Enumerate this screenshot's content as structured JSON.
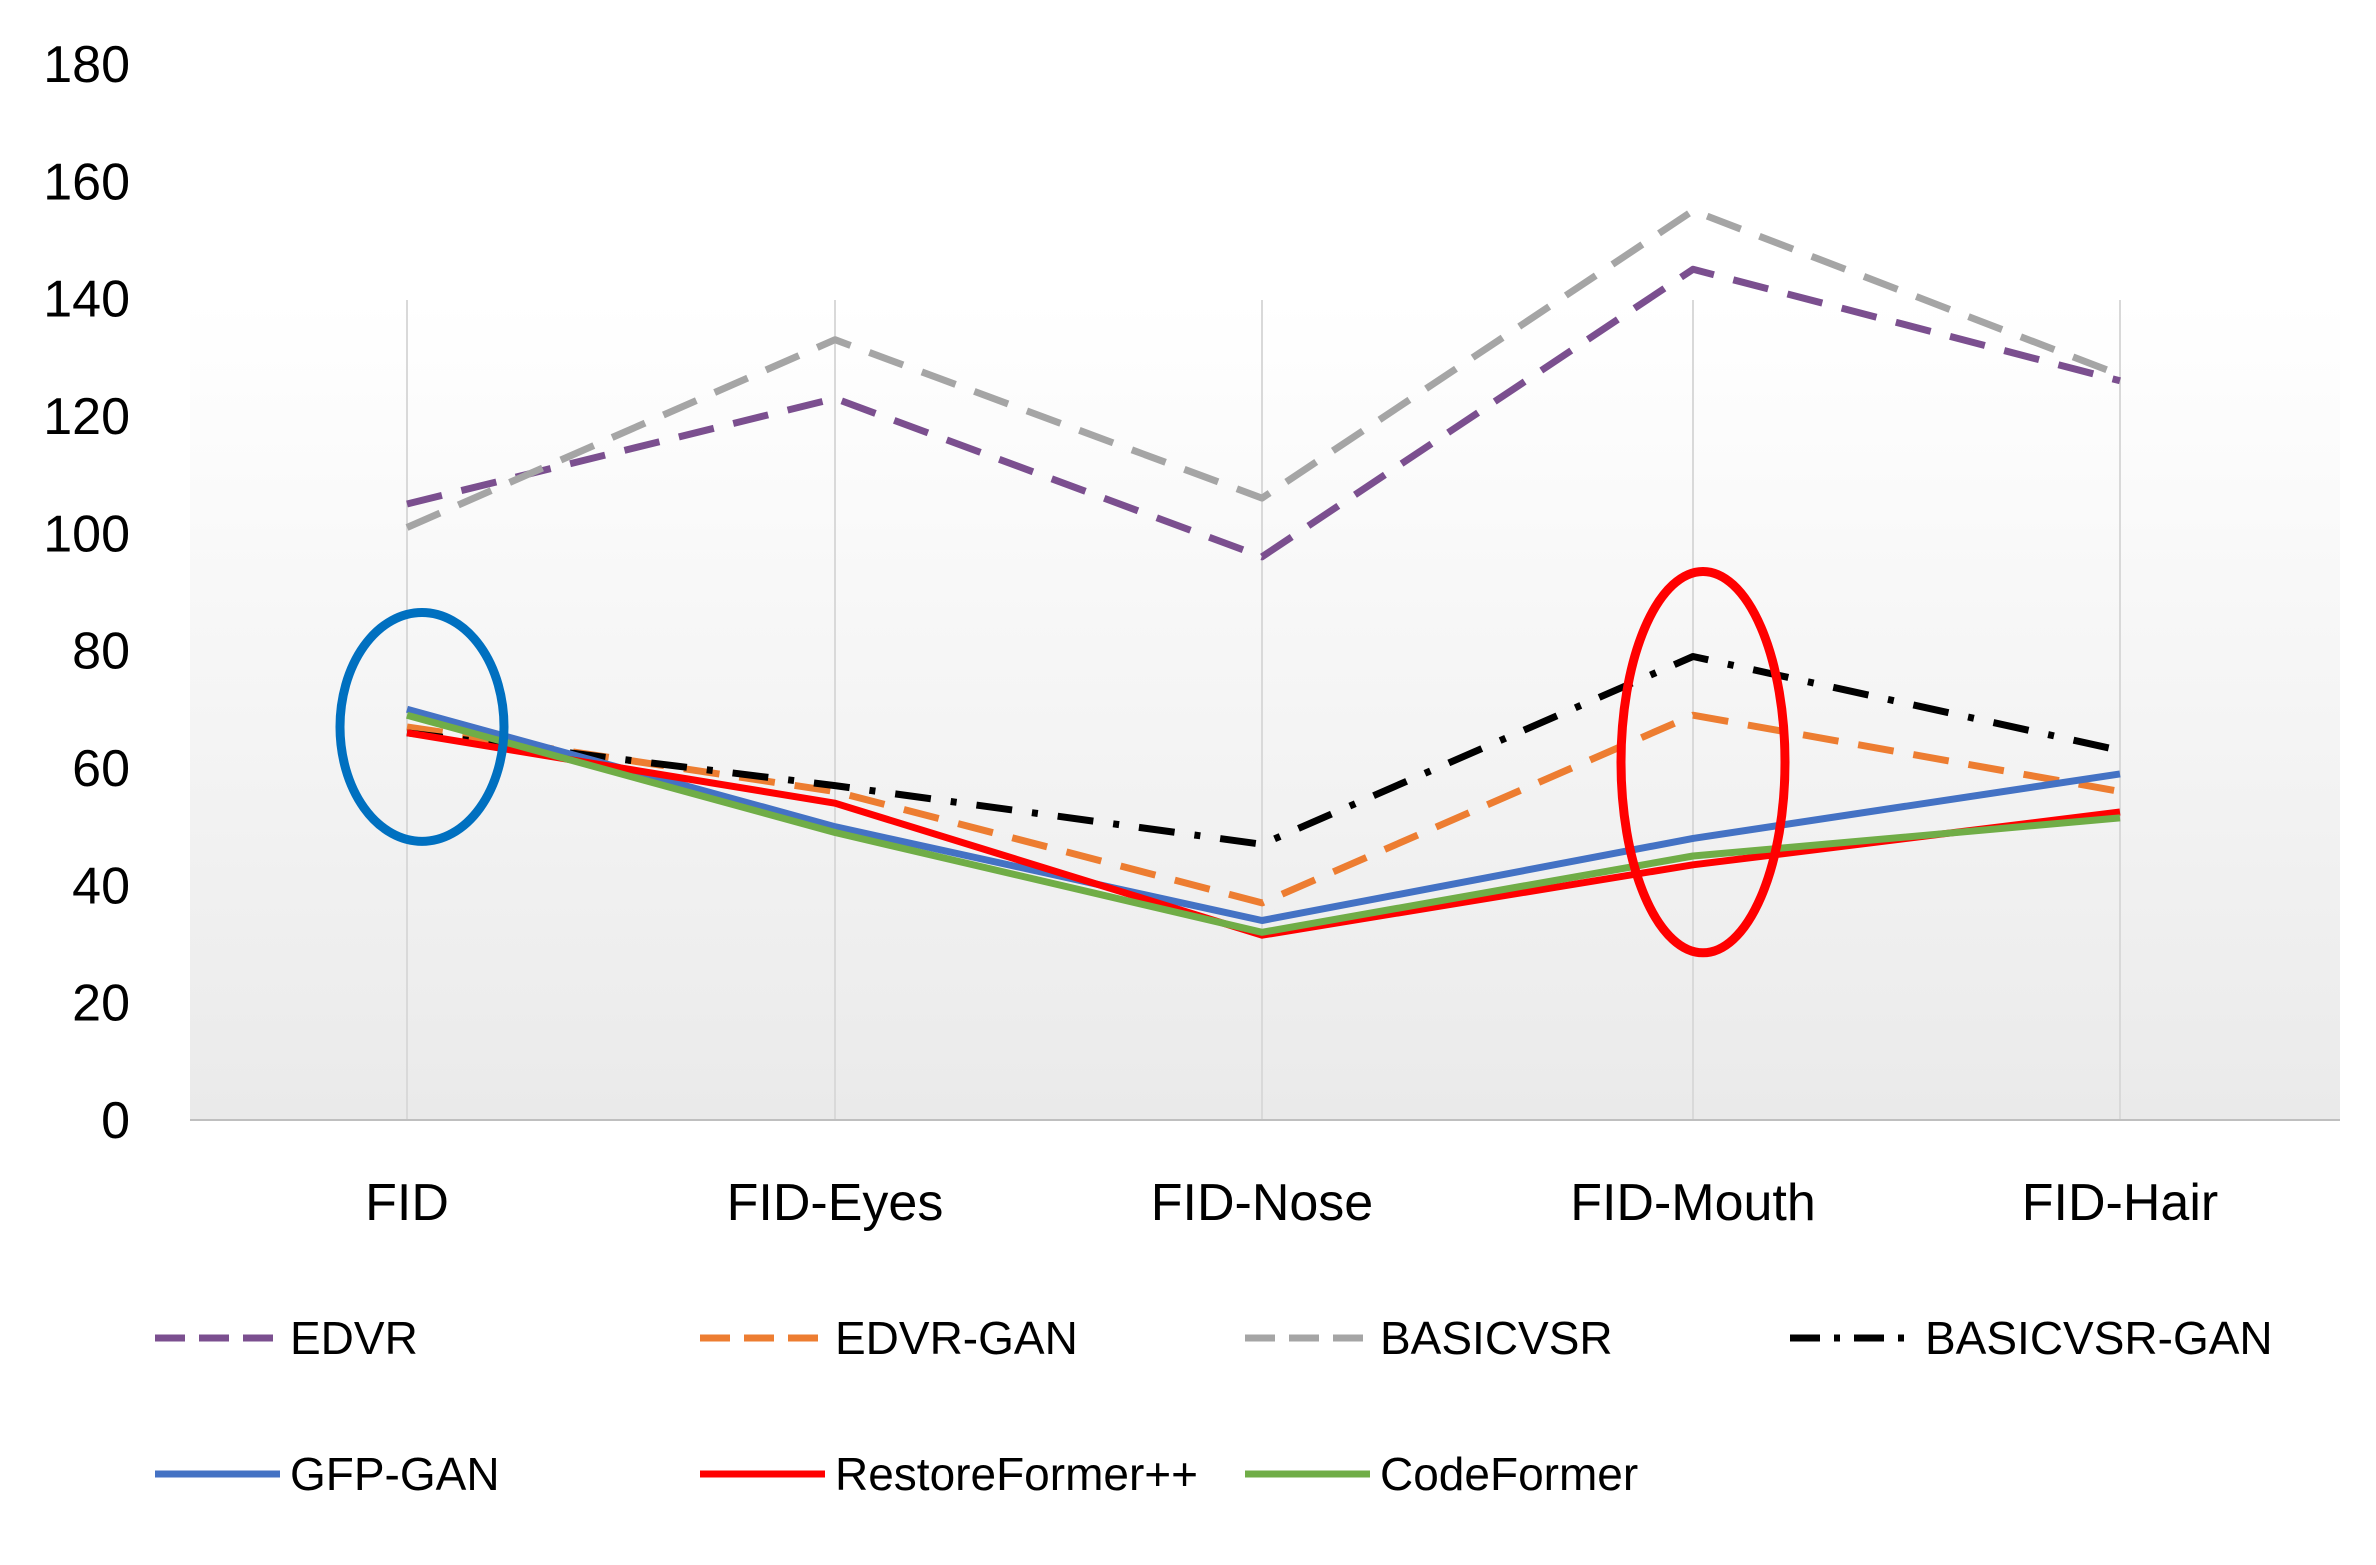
{
  "chart_data": {
    "type": "line",
    "title": "",
    "xlabel": "",
    "ylabel": "",
    "categories": [
      "FID",
      "FID-Eyes",
      "FID-Nose",
      "FID-Mouth",
      "FID-Hair"
    ],
    "yticks": [
      "0",
      "20",
      "40",
      "60",
      "80",
      "100",
      "120",
      "140",
      "160",
      "180"
    ],
    "ylim": [
      0,
      180
    ],
    "grid": "vertical",
    "legend_position": "bottom",
    "series": [
      {
        "name": "EDVR",
        "values": [
          105,
          123,
          96,
          145,
          126
        ],
        "color": "#7B4F8F",
        "dash": "dash"
      },
      {
        "name": "EDVR-GAN",
        "values": [
          67,
          56,
          37,
          69,
          56
        ],
        "color": "#ED7D31",
        "dash": "dash"
      },
      {
        "name": "BASICVSR",
        "values": [
          101,
          133,
          106,
          155,
          127
        ],
        "color": "#A5A5A5",
        "dash": "dash"
      },
      {
        "name": "BASICVSR-GAN",
        "values": [
          66,
          57,
          47,
          79,
          63
        ],
        "color": "#000000",
        "dash": "dashdot"
      },
      {
        "name": "GFP-GAN",
        "values": [
          70,
          50,
          34,
          48,
          59
        ],
        "color": "#4472C4",
        "dash": "solid"
      },
      {
        "name": "RestoreFormer++",
        "values": [
          66,
          54,
          31.5,
          43.5,
          52.5
        ],
        "color": "#FF0000",
        "dash": "solid"
      },
      {
        "name": "CodeFormer",
        "values": [
          69,
          49,
          32,
          45,
          51.5
        ],
        "color": "#70AD47",
        "dash": "solid"
      }
    ],
    "annotations": [
      {
        "shape": "ellipse",
        "category": "FID",
        "center_value": 67,
        "half_height_value": 19.5,
        "color": "#0070C0"
      },
      {
        "shape": "ellipse",
        "category": "FID-Mouth",
        "center_value": 61,
        "half_height_value": 32.5,
        "color": "#FF0000"
      }
    ]
  }
}
